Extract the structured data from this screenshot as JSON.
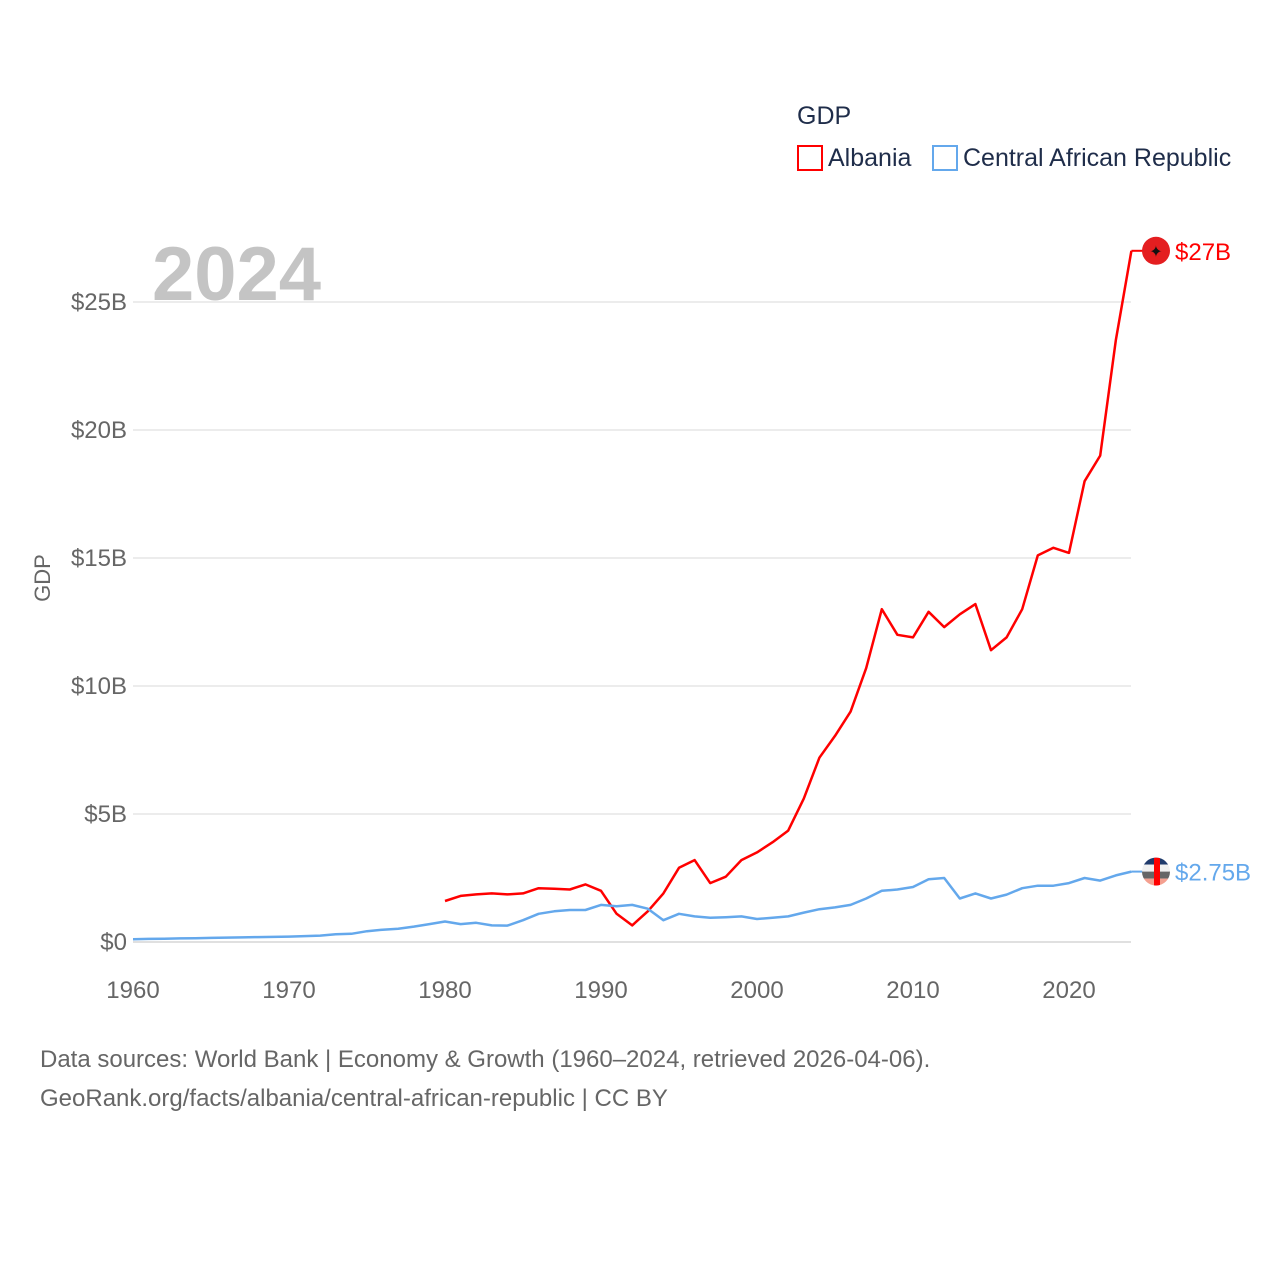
{
  "chart_data": {
    "type": "line",
    "title": "",
    "year_label": "2024",
    "xlabel": "",
    "ylabel": "GDP",
    "xlim": [
      1960,
      2024
    ],
    "ylim": [
      0,
      27
    ],
    "x_ticks": [
      "1960",
      "1970",
      "1980",
      "1990",
      "2000",
      "2010",
      "2020"
    ],
    "y_ticks": [
      {
        "value": 0,
        "label": "$0"
      },
      {
        "value": 5,
        "label": "$5B"
      },
      {
        "value": 10,
        "label": "$10B"
      },
      {
        "value": 15,
        "label": "$15B"
      },
      {
        "value": 20,
        "label": "$20B"
      },
      {
        "value": 25,
        "label": "$25B"
      }
    ],
    "grid": true,
    "legend": {
      "title": "GDP",
      "placement": "top-right"
    },
    "series": [
      {
        "name": "Albania",
        "color": "#ff0000",
        "end_label": "$27B",
        "start_year": 1980,
        "values": [
          1.6,
          1.8,
          1.86,
          1.9,
          1.86,
          1.9,
          2.1,
          2.08,
          2.05,
          2.25,
          2.0,
          1.1,
          0.65,
          1.2,
          1.9,
          2.9,
          3.2,
          2.3,
          2.55,
          3.2,
          3.5,
          3.9,
          4.35,
          5.6,
          7.2,
          8.05,
          9.0,
          10.7,
          13.0,
          12.0,
          11.9,
          12.9,
          12.3,
          12.8,
          13.2,
          11.4,
          11.9,
          13.0,
          15.1,
          15.4,
          15.2,
          18.0,
          19.0,
          23.5,
          27.0
        ]
      },
      {
        "name": "Central African Republic",
        "color": "#64a8ec",
        "end_label": "$2.75B",
        "start_year": 1960,
        "values": [
          0.11,
          0.12,
          0.13,
          0.14,
          0.15,
          0.16,
          0.17,
          0.18,
          0.19,
          0.2,
          0.21,
          0.23,
          0.25,
          0.3,
          0.32,
          0.42,
          0.48,
          0.52,
          0.6,
          0.7,
          0.8,
          0.7,
          0.75,
          0.65,
          0.64,
          0.85,
          1.1,
          1.2,
          1.25,
          1.25,
          1.45,
          1.4,
          1.45,
          1.3,
          0.85,
          1.1,
          1.0,
          0.95,
          0.97,
          1.0,
          0.9,
          0.95,
          1.0,
          1.15,
          1.28,
          1.35,
          1.45,
          1.7,
          2.0,
          2.05,
          2.15,
          2.45,
          2.5,
          1.7,
          1.9,
          1.7,
          1.85,
          2.1,
          2.2,
          2.2,
          2.3,
          2.5,
          2.4,
          2.6,
          2.75
        ]
      }
    ]
  },
  "source": {
    "line1": "Data sources: World Bank | Economy & Growth (1960–2024, retrieved 2026-04-06).",
    "line2": "GeoRank.org/facts/albania/central-african-republic | CC BY"
  }
}
